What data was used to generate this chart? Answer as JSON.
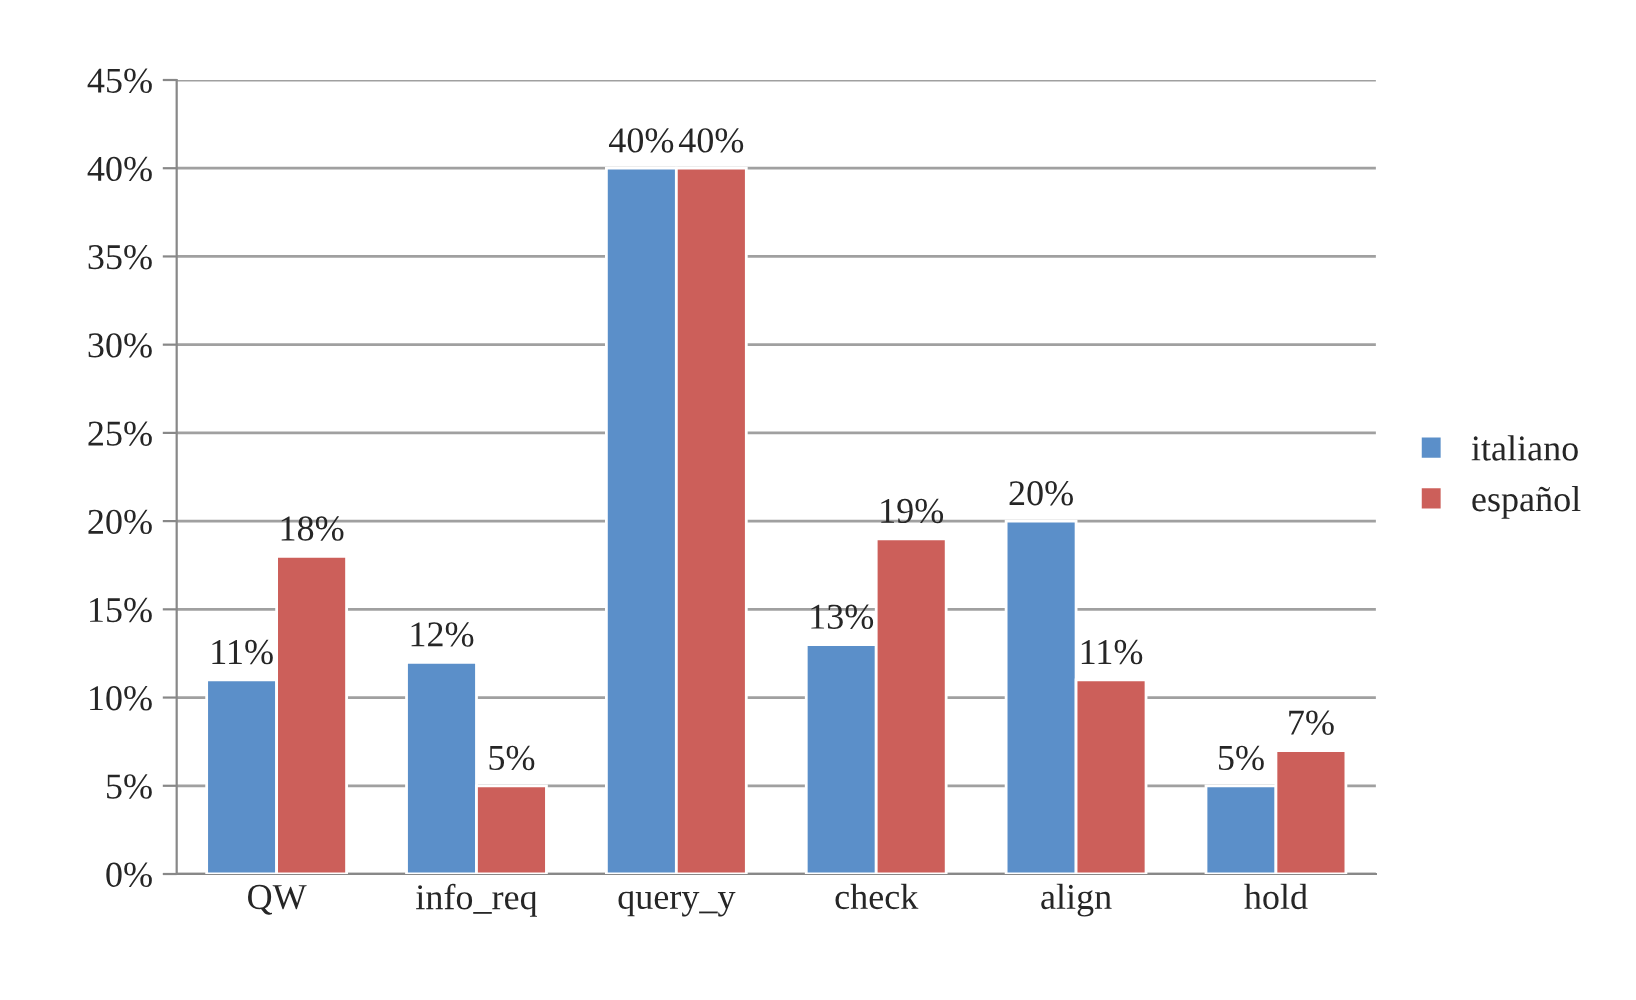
{
  "chart_data": {
    "type": "bar",
    "categories": [
      "QW",
      "info_req",
      "query_y",
      "check",
      "align",
      "hold"
    ],
    "series": [
      {
        "name": "italiano",
        "color": "#5b8fc9",
        "values": [
          11,
          12,
          40,
          13,
          20,
          5
        ],
        "value_labels": [
          "11%",
          "12%",
          "40%",
          "13%",
          "20%",
          "5%"
        ]
      },
      {
        "name": "español",
        "color": "#cc5f5a",
        "values": [
          18,
          5,
          40,
          19,
          11,
          7
        ],
        "value_labels": [
          "18%",
          "5%",
          "40%",
          "19%",
          "11%",
          "7%"
        ]
      }
    ],
    "ylim": [
      0,
      45
    ],
    "yticks": [
      {
        "value": 0,
        "label": "0%"
      },
      {
        "value": 5,
        "label": "5%"
      },
      {
        "value": 10,
        "label": "10%"
      },
      {
        "value": 15,
        "label": "15%"
      },
      {
        "value": 20,
        "label": "20%"
      },
      {
        "value": 25,
        "label": "25%"
      },
      {
        "value": 30,
        "label": "30%"
      },
      {
        "value": 35,
        "label": "35%"
      },
      {
        "value": 40,
        "label": "40%"
      },
      {
        "value": 45,
        "label": "45%"
      }
    ],
    "grid": "y",
    "legend": "right"
  }
}
